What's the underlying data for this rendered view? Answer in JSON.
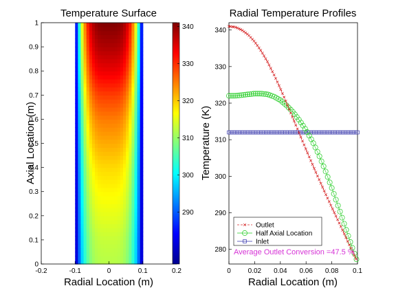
{
  "chart_data": [
    {
      "type": "heatmap",
      "title": "Temperature Surface",
      "xlabel": "Radial Location (m)",
      "ylabel": "Axial Location (m)",
      "xlim": [
        -0.2,
        0.2
      ],
      "ylim": [
        0,
        1
      ],
      "xticks": [
        "-0.2",
        "-0.1",
        "0",
        "0.1",
        "0.2"
      ],
      "yticks": [
        "0",
        "0.1",
        "0.2",
        "0.3",
        "0.4",
        "0.5",
        "0.6",
        "0.7",
        "0.8",
        "0.9",
        "1"
      ],
      "domain_x": [
        -0.1,
        0.1
      ],
      "colormap": "jet",
      "colorbar": {
        "min": 276,
        "max": 341,
        "ticks": [
          "290",
          "300",
          "310",
          "320",
          "330",
          "340"
        ]
      },
      "center_temperature_vs_axial": {
        "z": [
          0,
          0.1,
          0.2,
          0.3,
          0.4,
          0.5,
          0.6,
          0.7,
          0.8,
          0.9,
          1.0
        ],
        "T": [
          312,
          313,
          315,
          317,
          319,
          322,
          325,
          329,
          334,
          338,
          341
        ]
      },
      "wall_temperature": 276
    },
    {
      "type": "line",
      "title": "Radial Temperature Profiles",
      "xlabel": "Radial Location (m)",
      "ylabel": "Temperature (K)",
      "xlim": [
        0,
        0.1
      ],
      "ylim": [
        276,
        342
      ],
      "xticks": [
        "0",
        "0.02",
        "0.04",
        "0.06",
        "0.08",
        "0.1"
      ],
      "yticks": [
        "280",
        "290",
        "300",
        "310",
        "320",
        "330",
        "340"
      ],
      "legend_position": "bottom-left",
      "series": [
        {
          "name": "Outlet",
          "color": "#d62728",
          "marker": "x-line",
          "x": [
            0,
            0.005,
            0.01,
            0.015,
            0.02,
            0.025,
            0.03,
            0.035,
            0.04,
            0.045,
            0.05,
            0.055,
            0.06,
            0.065,
            0.07,
            0.075,
            0.08,
            0.085,
            0.09,
            0.095,
            0.1
          ],
          "y": [
            341,
            340.8,
            340,
            338.7,
            336.8,
            334.3,
            331.3,
            327.8,
            324,
            319.9,
            315.7,
            311.5,
            307.3,
            303.2,
            299.2,
            295.3,
            291.5,
            287.8,
            284,
            280.2,
            276.5
          ]
        },
        {
          "name": "Half Axial Location",
          "color": "#22cc22",
          "marker": "circle",
          "x": [
            0,
            0.005,
            0.01,
            0.015,
            0.02,
            0.025,
            0.03,
            0.035,
            0.04,
            0.045,
            0.05,
            0.055,
            0.06,
            0.065,
            0.07,
            0.075,
            0.08,
            0.085,
            0.09,
            0.095,
            0.1
          ],
          "y": [
            322,
            322,
            322.2,
            322.4,
            322.6,
            322.6,
            322.4,
            321.8,
            320.8,
            319.3,
            317.5,
            315.2,
            312.6,
            309.5,
            305.8,
            301.5,
            296.8,
            291.8,
            286.6,
            281.4,
            276.5
          ]
        },
        {
          "name": "Inlet",
          "color": "#3333aa",
          "marker": "square",
          "x": [
            0,
            0.1
          ],
          "y": [
            312,
            312
          ]
        }
      ],
      "annotation": "Average Outlet Conversion =47.5 %"
    }
  ]
}
